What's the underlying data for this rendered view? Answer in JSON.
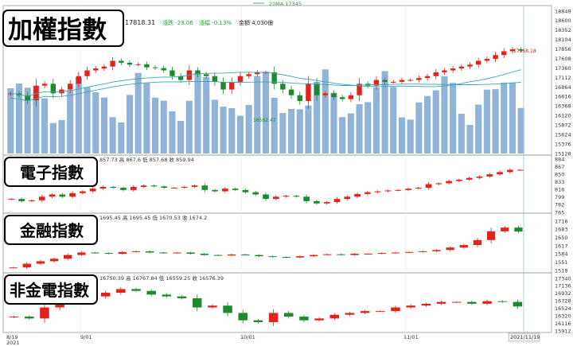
{
  "colors": {
    "up": "#e2231a",
    "down": "#1e8a2e",
    "volume": "#8fb3d9",
    "ma": "#3aa7b5",
    "border": "#999999"
  },
  "legend": {
    "ma_label": "20MA 17345"
  },
  "panels": [
    {
      "title": "加權指數",
      "info": {
        "last": "17818.31",
        "change_label": "漲跌 -23.06",
        "pct_label": "漲幅 -0.13%",
        "amount_label": "金額 4,030億"
      },
      "y_ticks": [
        "18848",
        "18600",
        "18352",
        "18104",
        "17856",
        "17608",
        "17360",
        "17112",
        "16864",
        "16616",
        "16368",
        "16120",
        "15872",
        "15624",
        "15376",
        "15128"
      ],
      "annotations": {
        "high": "17968.18",
        "low": "16562.47"
      }
    },
    {
      "title": "電子指數",
      "info": {
        "ohlc_label": "857.73 高 867.6 低 857.68 收 859.94"
      },
      "y_ticks": [
        "884",
        "867",
        "850",
        "833",
        "816",
        "799",
        "782",
        "765"
      ]
    },
    {
      "title": "金融指數",
      "info": {
        "ohlc_label": "1695.45 高 1695.45 低 1670.53 收 1674.2"
      },
      "y_ticks": [
        "1716",
        "1683",
        "1650",
        "1617",
        "1584",
        "1551",
        "1518"
      ]
    },
    {
      "title": "非金電指數",
      "info": {
        "ohlc_label": "16750.39 高 16767.84 低 16559.25 收 16576.39"
      },
      "y_ticks": [
        "17340",
        "17136",
        "16932",
        "16728",
        "16524",
        "16320",
        "16116",
        "15912"
      ]
    }
  ],
  "x_axis": {
    "labels": [
      "8/19",
      "9/01",
      "10/01",
      "11/01",
      "2021/11/19"
    ],
    "year_label": "2021"
  },
  "chart_data": [
    {
      "type": "candlestick",
      "title": "加權指數",
      "x_range": [
        "2021/8/19",
        "2021/11/19"
      ],
      "ylim": [
        15128,
        18848
      ],
      "series": [
        {
          "name": "20MA",
          "values_approx": [
            16700,
            17050,
            17345
          ]
        }
      ],
      "close_approx": [
        16700,
        16650,
        16520,
        16900,
        16950,
        16700,
        16800,
        16950,
        17150,
        17300,
        17350,
        17400,
        17550,
        17500,
        17450,
        17460,
        17380,
        17360,
        17300,
        17150,
        17050,
        17300,
        17200,
        17150,
        17000,
        16800,
        17000,
        17150,
        17200,
        17250,
        17250,
        16950,
        16800,
        16650,
        16500,
        16950,
        16650,
        16700,
        16600,
        16550,
        16650,
        16950,
        16900,
        17050,
        17000,
        17000,
        17050,
        17050,
        17100,
        17150,
        17250,
        17300,
        17350,
        17400,
        17450,
        17550,
        17600,
        17700,
        17800,
        17850,
        17818
      ]
    },
    {
      "type": "candlestick",
      "title": "電子指數",
      "ylim": [
        765,
        884
      ],
      "close_approx": [
        795,
        790,
        792,
        800,
        805,
        800,
        808,
        812,
        818,
        822,
        820,
        815,
        822,
        825,
        823,
        820,
        820,
        822,
        825,
        815,
        812,
        818,
        815,
        810,
        805,
        795,
        800,
        802,
        800,
        790,
        785,
        788,
        795,
        800,
        806,
        810,
        812,
        814,
        815,
        818,
        820,
        828,
        830,
        835,
        838,
        842,
        845,
        850,
        855,
        860,
        860
      ]
    },
    {
      "type": "candlestick",
      "title": "金融指數",
      "ylim": [
        1518,
        1716
      ],
      "close_approx": [
        1530,
        1545,
        1555,
        1565,
        1580,
        1590,
        1588,
        1585,
        1592,
        1595,
        1590,
        1588,
        1590,
        1585,
        1580,
        1578,
        1582,
        1580,
        1575,
        1572,
        1570,
        1575,
        1580,
        1583,
        1580,
        1585,
        1585,
        1588,
        1590,
        1592,
        1595,
        1600,
        1610,
        1620,
        1640,
        1675,
        1690,
        1674
      ]
    },
    {
      "type": "candlestick",
      "title": "非金電指數",
      "ylim": [
        15912,
        17340
      ],
      "close_approx": [
        16300,
        16250,
        16550,
        16750,
        16700,
        16850,
        16950,
        17050,
        17000,
        16900,
        16850,
        16800,
        16550,
        16600,
        16400,
        16200,
        16150,
        16400,
        16300,
        16200,
        16250,
        16350,
        16400,
        16450,
        16450,
        16550,
        16600,
        16650,
        16700,
        16700,
        16650,
        16720,
        16700,
        16576
      ]
    }
  ]
}
